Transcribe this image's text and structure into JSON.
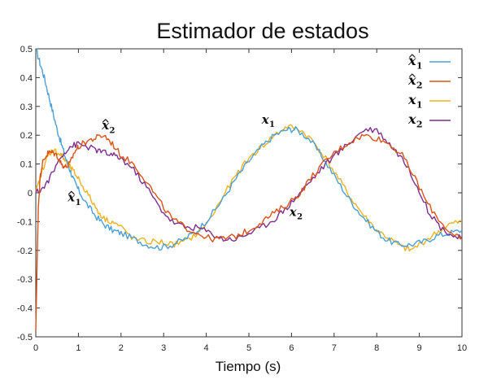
{
  "chart_data": {
    "type": "line",
    "title": "Estimador de estados",
    "xlabel": "Tiempo (s)",
    "ylabel": "",
    "xlim": [
      0,
      10
    ],
    "ylim": [
      -0.5,
      0.5
    ],
    "xticks": [
      0,
      1,
      2,
      3,
      4,
      5,
      6,
      7,
      8,
      9,
      10
    ],
    "yticks": [
      -0.5,
      -0.4,
      -0.3,
      -0.2,
      -0.1,
      0,
      0.1,
      0.2,
      0.3,
      0.4,
      0.5
    ],
    "grid": false,
    "legend_position": "top-right",
    "series": [
      {
        "name": "x̂1",
        "color": "#4a9fd6",
        "x": [
          0,
          0.1,
          0.2,
          0.3,
          0.4,
          0.5,
          0.6,
          0.7,
          0.8,
          0.9,
          1.0,
          1.2,
          1.4,
          1.6,
          1.8,
          2.0,
          2.3,
          2.6,
          2.9,
          3.2,
          3.5,
          3.8,
          4.1,
          4.4,
          4.7,
          5.0,
          5.3,
          5.6,
          5.9,
          6.1,
          6.4,
          6.7,
          7.0,
          7.3,
          7.6,
          7.9,
          8.2,
          8.5,
          8.8,
          9.1,
          9.4,
          9.7,
          10.0
        ],
        "values": [
          0.5,
          0.45,
          0.4,
          0.34,
          0.28,
          0.22,
          0.17,
          0.12,
          0.08,
          0.04,
          0.01,
          -0.04,
          -0.08,
          -0.11,
          -0.13,
          -0.14,
          -0.16,
          -0.18,
          -0.19,
          -0.18,
          -0.16,
          -0.13,
          -0.08,
          -0.02,
          0.05,
          0.11,
          0.16,
          0.2,
          0.22,
          0.22,
          0.19,
          0.13,
          0.06,
          -0.01,
          -0.07,
          -0.12,
          -0.16,
          -0.18,
          -0.18,
          -0.17,
          -0.15,
          -0.14,
          -0.13
        ]
      },
      {
        "name": "x̂2",
        "color": "#d95319",
        "x": [
          0,
          0.03,
          0.06,
          0.1,
          0.15,
          0.2,
          0.3,
          0.4,
          0.5,
          0.6,
          0.7,
          0.8,
          0.9,
          1.0,
          1.2,
          1.4,
          1.6,
          1.8,
          2.0,
          2.3,
          2.6,
          2.9,
          3.2,
          3.5,
          3.8,
          4.1,
          4.4,
          4.7,
          5.0,
          5.3,
          5.6,
          5.9,
          6.2,
          6.5,
          6.8,
          7.1,
          7.4,
          7.7,
          8.0,
          8.3,
          8.6,
          8.9,
          9.2,
          9.5,
          9.8,
          10.0
        ],
        "values": [
          -0.48,
          -0.25,
          -0.05,
          0.05,
          0.1,
          0.12,
          0.14,
          0.14,
          0.13,
          0.1,
          0.09,
          0.1,
          0.14,
          0.16,
          0.18,
          0.19,
          0.2,
          0.17,
          0.13,
          0.1,
          0.04,
          -0.03,
          -0.09,
          -0.12,
          -0.14,
          -0.16,
          -0.16,
          -0.15,
          -0.13,
          -0.1,
          -0.07,
          -0.04,
          0.0,
          0.06,
          0.11,
          0.15,
          0.18,
          0.2,
          0.19,
          0.17,
          0.13,
          0.05,
          -0.04,
          -0.1,
          -0.15,
          -0.16
        ]
      },
      {
        "name": "x1",
        "color": "#edb120",
        "x": [
          0,
          0.1,
          0.2,
          0.3,
          0.4,
          0.5,
          0.6,
          0.7,
          0.8,
          0.9,
          1.0,
          1.2,
          1.4,
          1.6,
          1.8,
          2.0,
          2.3,
          2.6,
          2.9,
          3.2,
          3.5,
          3.8,
          4.1,
          4.4,
          4.7,
          5.0,
          5.3,
          5.6,
          5.9,
          6.2,
          6.5,
          6.8,
          7.1,
          7.4,
          7.7,
          8.0,
          8.3,
          8.6,
          8.8,
          9.1,
          9.4,
          9.7,
          10.0
        ],
        "values": [
          0.0,
          0.05,
          0.1,
          0.13,
          0.15,
          0.14,
          0.13,
          0.11,
          0.09,
          0.07,
          0.05,
          0.0,
          -0.05,
          -0.09,
          -0.1,
          -0.12,
          -0.16,
          -0.17,
          -0.17,
          -0.18,
          -0.17,
          -0.14,
          -0.09,
          -0.01,
          0.06,
          0.12,
          0.16,
          0.2,
          0.23,
          0.22,
          0.18,
          0.12,
          0.05,
          -0.02,
          -0.08,
          -0.13,
          -0.16,
          -0.19,
          -0.2,
          -0.17,
          -0.14,
          -0.11,
          -0.1
        ]
      },
      {
        "name": "x2",
        "color": "#7e2f8e",
        "x": [
          0,
          0.2,
          0.4,
          0.6,
          0.8,
          1.0,
          1.2,
          1.4,
          1.6,
          1.8,
          2.0,
          2.3,
          2.6,
          2.9,
          3.2,
          3.5,
          3.8,
          4.1,
          4.4,
          4.7,
          5.0,
          5.3,
          5.6,
          5.9,
          6.2,
          6.5,
          6.8,
          7.1,
          7.4,
          7.7,
          8.0,
          8.3,
          8.6,
          8.9,
          9.2,
          9.5,
          9.8,
          10.0
        ],
        "values": [
          0.0,
          0.02,
          0.07,
          0.13,
          0.16,
          0.17,
          0.16,
          0.15,
          0.14,
          0.13,
          0.12,
          0.08,
          0.02,
          -0.05,
          -0.1,
          -0.12,
          -0.12,
          -0.14,
          -0.16,
          -0.16,
          -0.14,
          -0.12,
          -0.09,
          -0.05,
          0.0,
          0.05,
          0.1,
          0.14,
          0.18,
          0.22,
          0.22,
          0.17,
          0.12,
          0.04,
          -0.06,
          -0.12,
          -0.15,
          -0.16
        ]
      }
    ],
    "legend": [
      {
        "label": "x",
        "sub": "1",
        "hat": true,
        "color": "#4a9fd6"
      },
      {
        "label": "x",
        "sub": "2",
        "hat": true,
        "color": "#d95319"
      },
      {
        "label": "x",
        "sub": "1",
        "hat": false,
        "color": "#edb120"
      },
      {
        "label": "x",
        "sub": "2",
        "hat": false,
        "color": "#7e2f8e"
      }
    ],
    "annotations": [
      {
        "label": "x",
        "sub": "2",
        "hat": true,
        "x": 1.55,
        "y": 0.22
      },
      {
        "label": "x",
        "sub": "1",
        "hat": true,
        "x": 0.75,
        "y": -0.03
      },
      {
        "label": "x",
        "sub": "1",
        "hat": false,
        "x": 5.3,
        "y": 0.24
      },
      {
        "label": "x",
        "sub": "2",
        "hat": false,
        "x": 5.95,
        "y": -0.08
      }
    ]
  }
}
